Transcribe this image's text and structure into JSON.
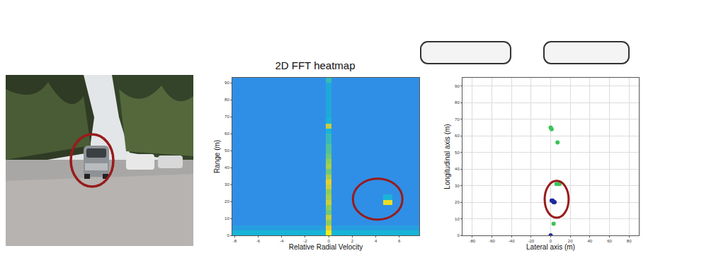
{
  "chart_data": [
    {
      "type": "heatmap",
      "title": "2D FFT heatmap",
      "x_label": "Relative Radial Velocity",
      "y_label": "Range (m)",
      "x": [
        -8.2,
        -0.25,
        0.25,
        4.6,
        5.4,
        7.7
      ],
      "y": [
        0,
        3,
        6,
        9,
        12,
        15,
        18,
        21,
        24,
        27,
        30,
        33,
        36,
        39,
        42,
        45,
        48,
        51,
        54,
        57,
        60,
        63,
        66,
        69,
        72,
        75,
        78,
        81,
        84,
        87,
        90,
        93
      ],
      "cells": [
        [
          0.5,
          0.95,
          0.5,
          0.5,
          0.5
        ],
        [
          0.4,
          0.85,
          0.4,
          0.4,
          0.4
        ],
        [
          0.33,
          0.7,
          0.33,
          0.33,
          0.33
        ],
        [
          0.33,
          0.8,
          0.33,
          0.33,
          0.33
        ],
        [
          0.33,
          0.65,
          0.33,
          0.33,
          0.33
        ],
        [
          0.33,
          0.7,
          0.33,
          0.33,
          0.33
        ],
        [
          0.33,
          0.8,
          0.33,
          0.9,
          0.33
        ],
        [
          0.33,
          0.75,
          0.33,
          0.5,
          0.33
        ],
        [
          0.33,
          0.7,
          0.33,
          0.33,
          0.33
        ],
        [
          0.33,
          0.8,
          0.33,
          0.33,
          0.33
        ],
        [
          0.33,
          0.85,
          0.33,
          0.33,
          0.33
        ],
        [
          0.33,
          0.75,
          0.33,
          0.33,
          0.33
        ],
        [
          0.33,
          0.65,
          0.33,
          0.33,
          0.33
        ],
        [
          0.33,
          0.75,
          0.33,
          0.33,
          0.33
        ],
        [
          0.33,
          0.7,
          0.33,
          0.33,
          0.33
        ],
        [
          0.33,
          0.65,
          0.33,
          0.33,
          0.33
        ],
        [
          0.33,
          0.6,
          0.33,
          0.33,
          0.33
        ],
        [
          0.33,
          0.6,
          0.33,
          0.33,
          0.33
        ],
        [
          0.33,
          0.55,
          0.33,
          0.33,
          0.33
        ],
        [
          0.33,
          0.55,
          0.33,
          0.33,
          0.33
        ],
        [
          0.33,
          0.5,
          0.33,
          0.33,
          0.33
        ],
        [
          0.33,
          0.8,
          0.33,
          0.33,
          0.33
        ],
        [
          0.33,
          0.5,
          0.33,
          0.33,
          0.33
        ],
        [
          0.33,
          0.45,
          0.33,
          0.33,
          0.33
        ],
        [
          0.33,
          0.45,
          0.33,
          0.33,
          0.33
        ],
        [
          0.33,
          0.45,
          0.33,
          0.33,
          0.33
        ],
        [
          0.33,
          0.45,
          0.33,
          0.33,
          0.33
        ],
        [
          0.33,
          0.45,
          0.33,
          0.33,
          0.33
        ],
        [
          0.33,
          0.45,
          0.33,
          0.33,
          0.33
        ],
        [
          0.33,
          0.45,
          0.33,
          0.33,
          0.33
        ],
        [
          0.33,
          0.55,
          0.33,
          0.33,
          0.33
        ]
      ],
      "zlim": [
        0,
        1
      ],
      "xlim": [
        -8.2,
        7.7
      ],
      "ylim": [
        0,
        93
      ],
      "xticks": [
        -8,
        -6,
        -4,
        -2,
        0,
        2,
        4,
        6
      ],
      "yticks": [
        0,
        10,
        20,
        30,
        40,
        50,
        60,
        70,
        80,
        90
      ]
    },
    {
      "type": "scatter",
      "x_label": "Lateral axis (m)",
      "y_label": "Longitudinal axis (m)",
      "series": [
        {
          "color": "#3cc45a",
          "x": [
            0,
            1,
            7,
            6,
            8,
            9,
            3
          ],
          "y": [
            65,
            64,
            56,
            31,
            31,
            31,
            7
          ]
        },
        {
          "color": "#1c2a9c",
          "x": [
            1,
            2,
            3,
            4,
            0
          ],
          "y": [
            21,
            21,
            20,
            20,
            0
          ]
        }
      ],
      "marker": "circle",
      "xlim": [
        -90,
        90
      ],
      "ylim": [
        0,
        95
      ],
      "xticks": [
        -80,
        -60,
        -40,
        -20,
        0,
        20,
        40,
        60,
        80
      ],
      "yticks": [
        0,
        10,
        20,
        30,
        40,
        50,
        60,
        70,
        80,
        90
      ],
      "grid": true
    }
  ]
}
